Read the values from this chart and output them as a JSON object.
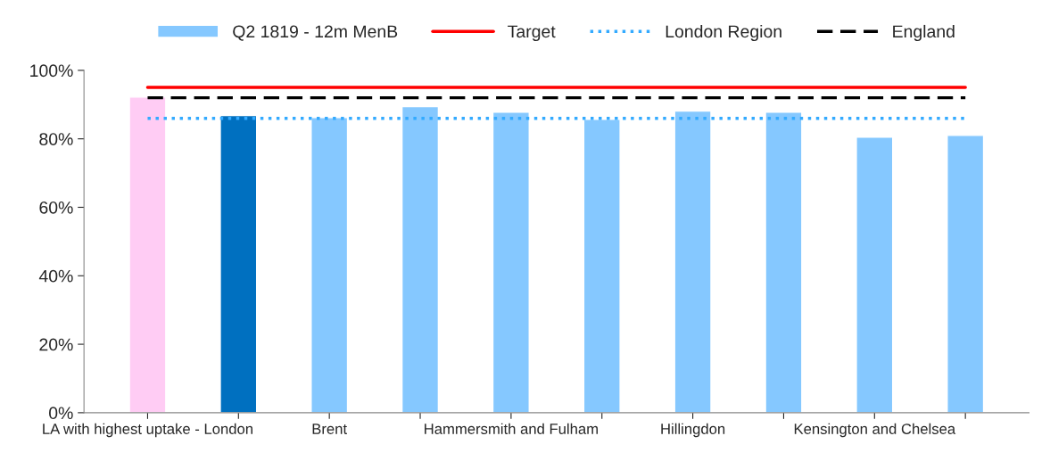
{
  "chart_data": {
    "type": "bar",
    "categories": [
      "LA with highest uptake - London",
      null,
      "Brent",
      null,
      "Hammersmith and Fulham",
      null,
      "Hillingdon",
      null,
      "Kensington and Chelsea",
      null
    ],
    "series": [
      {
        "name": "Q2 1819 - 12m MenB",
        "color": "#85c8ff",
        "colors": [
          "#ffccf4",
          "#0070c0",
          "#85c8ff",
          "#85c8ff",
          "#85c8ff",
          "#85c8ff",
          "#85c8ff",
          "#85c8ff",
          "#85c8ff",
          "#85c8ff"
        ],
        "values": [
          92.2,
          86.8,
          86.2,
          89.4,
          87.8,
          85.7,
          88.1,
          87.8,
          80.5,
          81.0
        ]
      },
      {
        "name": "Target",
        "type": "line",
        "color": "#ff0000",
        "line_style": "solid",
        "values": [
          95,
          95,
          95,
          95,
          95,
          95,
          95,
          95,
          95,
          95
        ]
      },
      {
        "name": "London Region",
        "type": "line",
        "color": "#33aaff",
        "line_style": "dotted",
        "values": [
          86,
          86,
          86,
          86,
          86,
          86,
          86,
          86,
          86,
          86
        ]
      },
      {
        "name": "England",
        "type": "line",
        "color": "#000000",
        "line_style": "dashed",
        "values": [
          92,
          92,
          92,
          92,
          92,
          92,
          92,
          92,
          92,
          92
        ]
      }
    ],
    "ylim": [
      0,
      100
    ],
    "yticks": [
      {
        "value": 0,
        "label": "0%"
      },
      {
        "value": 20,
        "label": "20%"
      },
      {
        "value": 40,
        "label": "40%"
      },
      {
        "value": 60,
        "label": "60%"
      },
      {
        "value": 80,
        "label": "80%"
      },
      {
        "value": 100,
        "label": "100%"
      }
    ],
    "grid": false,
    "legend": "top",
    "marker": "none"
  }
}
